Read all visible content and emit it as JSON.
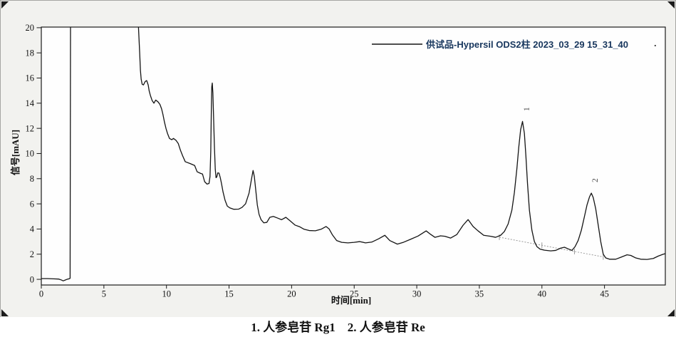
{
  "figure": {
    "legend": {
      "label": "供试品-Hypersil ODS2柱 2023_03_29 15_31_40",
      "color": "#17365d",
      "trailing_dot": "."
    }
  },
  "caption": "1. 人参皂苷 Rg1    2. 人参皂苷 Re",
  "chart_data": {
    "type": "line",
    "title": "",
    "xlabel": "时间[min]",
    "ylabel": "信号[mAU]",
    "xlim": [
      0,
      49.86
    ],
    "ylim": [
      -0.45,
      20.05
    ],
    "x_ticks": [
      0,
      5,
      10,
      15,
      20,
      25,
      30,
      35,
      40,
      45
    ],
    "y_ticks": [
      0,
      2,
      4,
      6,
      8,
      10,
      12,
      14,
      16,
      18,
      20
    ],
    "grid": false,
    "legend_position": "top-right",
    "series": [
      {
        "name": "供试品-Hypersil ODS2柱 2023_03_29 15_31_40",
        "color": "#141414",
        "points": [
          [
            0,
            0.06
          ],
          [
            0.5,
            0.06
          ],
          [
            1,
            0.04
          ],
          [
            1.4,
            0.02
          ],
          [
            1.6,
            -0.05
          ],
          [
            1.75,
            -0.12
          ],
          [
            1.9,
            -0.06
          ],
          [
            2.05,
            0
          ],
          [
            2.2,
            0.04
          ],
          [
            2.3,
            0.08
          ],
          [
            2.34,
            24
          ],
          [
            7.7,
            24
          ],
          [
            7.76,
            20.1
          ],
          [
            7.86,
            18
          ],
          [
            7.92,
            16.6
          ],
          [
            7.98,
            15.9
          ],
          [
            8.06,
            15.5
          ],
          [
            8.16,
            15.45
          ],
          [
            8.3,
            15.72
          ],
          [
            8.42,
            15.8
          ],
          [
            8.54,
            15.45
          ],
          [
            8.62,
            14.97
          ],
          [
            8.72,
            14.6
          ],
          [
            8.86,
            14.2
          ],
          [
            9,
            14
          ],
          [
            9.14,
            14.25
          ],
          [
            9.33,
            14.1
          ],
          [
            9.48,
            13.9
          ],
          [
            9.61,
            13.55
          ],
          [
            9.72,
            13.1
          ],
          [
            9.84,
            12.5
          ],
          [
            9.96,
            12
          ],
          [
            10.08,
            11.6
          ],
          [
            10.24,
            11.2
          ],
          [
            10.42,
            11.1
          ],
          [
            10.56,
            11.2
          ],
          [
            10.76,
            11.05
          ],
          [
            10.94,
            10.8
          ],
          [
            11.12,
            10.25
          ],
          [
            11.3,
            9.8
          ],
          [
            11.5,
            9.35
          ],
          [
            11.9,
            9.2
          ],
          [
            12.25,
            9.05
          ],
          [
            12.45,
            8.55
          ],
          [
            12.73,
            8.42
          ],
          [
            12.88,
            8.37
          ],
          [
            13.05,
            7.76
          ],
          [
            13.24,
            7.57
          ],
          [
            13.4,
            7.62
          ],
          [
            13.48,
            8.18
          ],
          [
            13.54,
            10.2
          ],
          [
            13.58,
            13.1
          ],
          [
            13.62,
            15.3
          ],
          [
            13.66,
            15.6
          ],
          [
            13.71,
            14.8
          ],
          [
            13.77,
            12.7
          ],
          [
            13.83,
            10.6
          ],
          [
            13.9,
            8.74
          ],
          [
            13.96,
            8.08
          ],
          [
            14.02,
            8.14
          ],
          [
            14.1,
            8.46
          ],
          [
            14.2,
            8.44
          ],
          [
            14.3,
            8.08
          ],
          [
            14.4,
            7.6
          ],
          [
            14.52,
            6.95
          ],
          [
            14.68,
            6.29
          ],
          [
            14.86,
            5.82
          ],
          [
            15.06,
            5.68
          ],
          [
            15.38,
            5.57
          ],
          [
            15.76,
            5.58
          ],
          [
            16.04,
            5.72
          ],
          [
            16.32,
            6
          ],
          [
            16.6,
            6.86
          ],
          [
            16.8,
            8
          ],
          [
            16.92,
            8.65
          ],
          [
            17.02,
            8.18
          ],
          [
            17.14,
            7.04
          ],
          [
            17.26,
            5.91
          ],
          [
            17.4,
            5.16
          ],
          [
            17.56,
            4.74
          ],
          [
            17.78,
            4.49
          ],
          [
            18.02,
            4.53
          ],
          [
            18.26,
            4.93
          ],
          [
            18.54,
            5
          ],
          [
            18.88,
            4.87
          ],
          [
            19.2,
            4.74
          ],
          [
            19.54,
            4.93
          ],
          [
            19.9,
            4.63
          ],
          [
            20.28,
            4.31
          ],
          [
            20.66,
            4.17
          ],
          [
            21,
            3.98
          ],
          [
            21.4,
            3.88
          ],
          [
            21.9,
            3.86
          ],
          [
            22.35,
            3.98
          ],
          [
            22.75,
            4.2
          ],
          [
            23,
            4
          ],
          [
            23.25,
            3.55
          ],
          [
            23.6,
            3.08
          ],
          [
            24,
            2.94
          ],
          [
            24.5,
            2.9
          ],
          [
            25,
            2.94
          ],
          [
            25.45,
            3
          ],
          [
            25.9,
            2.9
          ],
          [
            26.4,
            2.96
          ],
          [
            26.95,
            3.22
          ],
          [
            27.45,
            3.5
          ],
          [
            27.85,
            3.08
          ],
          [
            28.45,
            2.8
          ],
          [
            28.95,
            2.95
          ],
          [
            29.5,
            3.18
          ],
          [
            30.1,
            3.44
          ],
          [
            30.75,
            3.85
          ],
          [
            31.1,
            3.58
          ],
          [
            31.45,
            3.34
          ],
          [
            31.9,
            3.46
          ],
          [
            32.25,
            3.42
          ],
          [
            32.7,
            3.28
          ],
          [
            33.2,
            3.56
          ],
          [
            33.7,
            4.3
          ],
          [
            34.1,
            4.75
          ],
          [
            34.5,
            4.2
          ],
          [
            34.9,
            3.85
          ],
          [
            35.35,
            3.5
          ],
          [
            35.9,
            3.42
          ],
          [
            36.3,
            3.34
          ],
          [
            36.7,
            3.5
          ],
          [
            37,
            3.8
          ],
          [
            37.3,
            4.4
          ],
          [
            37.6,
            5.5
          ],
          [
            37.8,
            6.9
          ],
          [
            38,
            8.8
          ],
          [
            38.15,
            10.5
          ],
          [
            38.3,
            11.9
          ],
          [
            38.45,
            12.55
          ],
          [
            38.6,
            11.6
          ],
          [
            38.72,
            9.8
          ],
          [
            38.85,
            7.6
          ],
          [
            39,
            5.5
          ],
          [
            39.2,
            3.9
          ],
          [
            39.4,
            3
          ],
          [
            39.6,
            2.6
          ],
          [
            39.85,
            2.4
          ],
          [
            40.2,
            2.32
          ],
          [
            40.7,
            2.26
          ],
          [
            41.1,
            2.3
          ],
          [
            41.5,
            2.48
          ],
          [
            41.8,
            2.55
          ],
          [
            42.1,
            2.42
          ],
          [
            42.4,
            2.3
          ],
          [
            42.65,
            2.6
          ],
          [
            42.9,
            3.1
          ],
          [
            43.15,
            3.9
          ],
          [
            43.4,
            5
          ],
          [
            43.6,
            5.9
          ],
          [
            43.8,
            6.55
          ],
          [
            43.95,
            6.85
          ],
          [
            44.1,
            6.5
          ],
          [
            44.3,
            5.6
          ],
          [
            44.5,
            4.3
          ],
          [
            44.7,
            3
          ],
          [
            44.9,
            2
          ],
          [
            45.1,
            1.7
          ],
          [
            45.4,
            1.6
          ],
          [
            45.9,
            1.6
          ],
          [
            46.3,
            1.75
          ],
          [
            46.8,
            1.95
          ],
          [
            47.1,
            1.9
          ],
          [
            47.5,
            1.7
          ],
          [
            47.9,
            1.6
          ],
          [
            48.4,
            1.58
          ],
          [
            48.9,
            1.66
          ],
          [
            49.3,
            1.85
          ],
          [
            49.7,
            2
          ],
          [
            49.86,
            2.04
          ]
        ]
      }
    ],
    "integration_baseline": {
      "style": "dotted",
      "color": "#9a9a9a",
      "from": [
        36.6,
        3.35
      ],
      "to": [
        44.9,
        1.78
      ],
      "tick_times": [
        36.6,
        40.0,
        42.6,
        44.9
      ]
    },
    "peak_annotations": [
      {
        "label": "1",
        "t": 38.82,
        "v": 13.53
      },
      {
        "label": "2",
        "t": 44.28,
        "v": 7.87
      }
    ]
  }
}
